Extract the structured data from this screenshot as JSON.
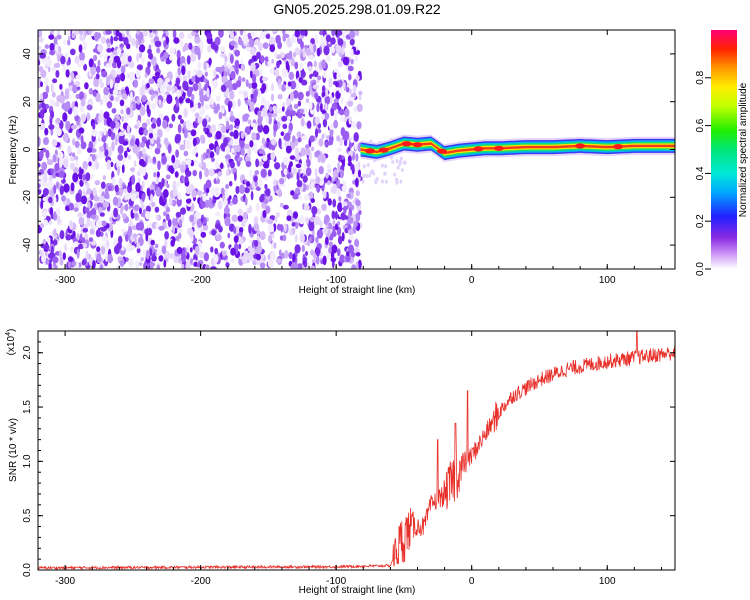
{
  "title": "GN05.2025.298.01.09.R22",
  "chart_data": [
    {
      "type": "heatmap",
      "xlabel": "Height of straight line (km)",
      "ylabel": "Frequency (Hz)",
      "xlim": [
        -320,
        150
      ],
      "ylim": [
        -50,
        50
      ],
      "xticks": [
        -300,
        -200,
        -100,
        0,
        100
      ],
      "yticks": [
        -40,
        -20,
        0,
        20,
        40
      ],
      "noise_region_x": [
        -320,
        -82
      ],
      "signal_track": [
        {
          "x": -82,
          "y": 0
        },
        {
          "x": -70,
          "y": -1
        },
        {
          "x": -60,
          "y": 0.5
        },
        {
          "x": -50,
          "y": 2.5
        },
        {
          "x": -40,
          "y": 2
        },
        {
          "x": -30,
          "y": 2.5
        },
        {
          "x": -20,
          "y": -1.5
        },
        {
          "x": -10,
          "y": -0.5
        },
        {
          "x": 0,
          "y": 0
        },
        {
          "x": 10,
          "y": 0.5
        },
        {
          "x": 20,
          "y": 0.5
        },
        {
          "x": 40,
          "y": 1
        },
        {
          "x": 60,
          "y": 1
        },
        {
          "x": 80,
          "y": 1.5
        },
        {
          "x": 100,
          "y": 1
        },
        {
          "x": 120,
          "y": 1.5
        },
        {
          "x": 150,
          "y": 1.5
        }
      ],
      "colorbar": {
        "label": "Normalized spectral amplitude",
        "range": [
          0,
          1
        ],
        "ticks": [
          "0.0",
          "0.2",
          "0.4",
          "0.6",
          "0.8"
        ],
        "ticks_values": [
          0,
          0.2,
          0.4,
          0.6,
          0.8
        ]
      }
    },
    {
      "type": "line",
      "xlabel": "Height of straight line (km)",
      "ylabel": "SNR (10 * v/v)",
      "scale_label": "(x10",
      "scale_exp": "4",
      "scale_close": ")",
      "xlim": [
        -320,
        150
      ],
      "ylim": [
        0,
        2.2
      ],
      "xticks": [
        -300,
        -200,
        -100,
        0,
        100
      ],
      "yticks": [
        "0.0",
        "0.5",
        "1.0",
        "1.5",
        "2.0"
      ],
      "ytick_values": [
        0,
        0.5,
        1.0,
        1.5,
        2.0
      ],
      "series": [
        {
          "name": "SNR",
          "color": "#e8302a",
          "trend": [
            {
              "x": -320,
              "y": 0.02
            },
            {
              "x": -100,
              "y": 0.03
            },
            {
              "x": -60,
              "y": 0.04
            },
            {
              "x": -55,
              "y": 0.2
            },
            {
              "x": -45,
              "y": 0.4
            },
            {
              "x": -35,
              "y": 0.4
            },
            {
              "x": -30,
              "y": 0.6
            },
            {
              "x": -20,
              "y": 0.7
            },
            {
              "x": -10,
              "y": 0.9
            },
            {
              "x": 0,
              "y": 1.05
            },
            {
              "x": 10,
              "y": 1.25
            },
            {
              "x": 20,
              "y": 1.45
            },
            {
              "x": 30,
              "y": 1.6
            },
            {
              "x": 50,
              "y": 1.75
            },
            {
              "x": 70,
              "y": 1.85
            },
            {
              "x": 100,
              "y": 1.92
            },
            {
              "x": 130,
              "y": 1.97
            },
            {
              "x": 150,
              "y": 2.0
            }
          ],
          "peaks": [
            {
              "x": -25,
              "y": 1.2
            },
            {
              "x": -12,
              "y": 1.35
            },
            {
              "x": -3,
              "y": 1.65
            },
            {
              "x": 122,
              "y": 2.2
            }
          ]
        }
      ]
    }
  ],
  "colors": {
    "noise_dark": "#6a12e6",
    "noise_light": "#c9a6f7",
    "signal": "#e8302a"
  }
}
